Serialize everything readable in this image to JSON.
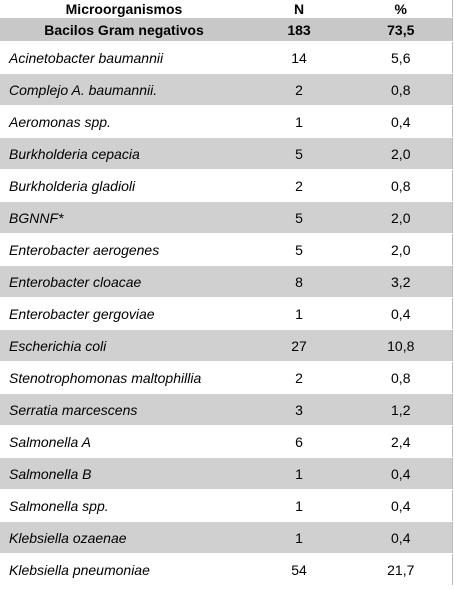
{
  "table": {
    "header": [
      "Microorganismos",
      "N",
      "%"
    ],
    "group": [
      "Bacilos Gram negativos",
      "183",
      "73,5"
    ],
    "rows": [
      [
        "Acinetobacter baumannii",
        "14",
        "5,6"
      ],
      [
        "Complejo A. baumannii.",
        "2",
        "0,8"
      ],
      [
        "Aeromonas  spp.",
        "1",
        "0,4"
      ],
      [
        "Burkholderia cepacia",
        "5",
        "2,0"
      ],
      [
        "Burkholderia gladioli",
        "2",
        "0,8"
      ],
      [
        "BGNNF*",
        "5",
        "2,0"
      ],
      [
        "Enterobacter aerogenes",
        "5",
        "2,0"
      ],
      [
        "Enterobacter cloacae",
        "8",
        "3,2"
      ],
      [
        "Enterobacter gergoviae",
        "1",
        "0,4"
      ],
      [
        "Escherichia coli",
        "27",
        "10,8"
      ],
      [
        "Stenotrophomonas maltophillia",
        "2",
        "0,8"
      ],
      [
        "Serratia marcescens",
        "3",
        "1,2"
      ],
      [
        "Salmonella A",
        "6",
        "2,4"
      ],
      [
        "Salmonella B",
        "1",
        "0,4"
      ],
      [
        "Salmonella spp.",
        "1",
        "0,4"
      ],
      [
        "Klebsiella ozaenae",
        "1",
        "0,4"
      ],
      [
        "Klebsiella pneumoniae",
        "54",
        "21,7"
      ]
    ]
  }
}
